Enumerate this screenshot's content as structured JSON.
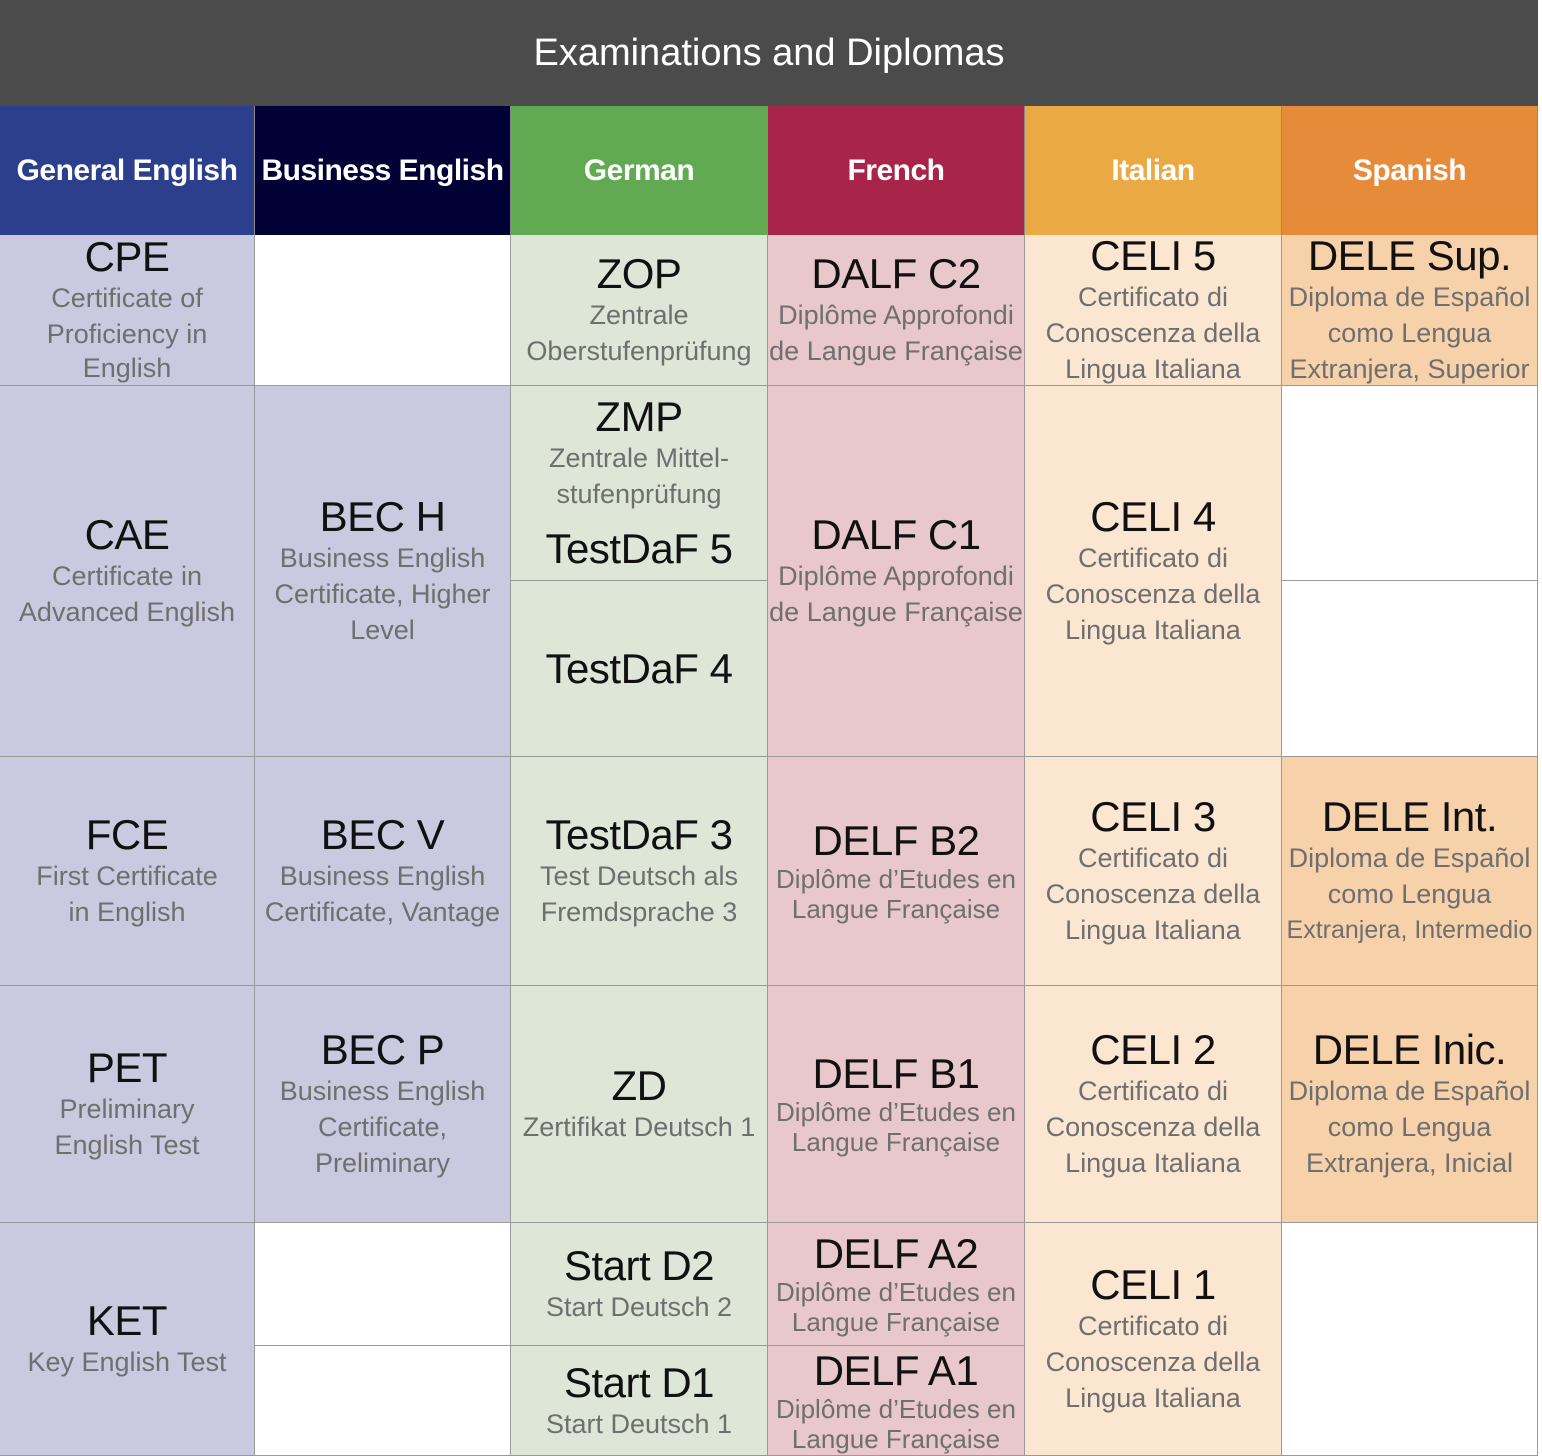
{
  "title": "Examinations and Diplomas",
  "colors": {
    "general_english": "#2b3f8c",
    "business_english": "#010135",
    "german": "#62aa52",
    "french": "#a8244a",
    "italian": "#eba944",
    "spanish": "#e58b3a"
  },
  "headers": {
    "general_english": "General English",
    "business_english": "Business English",
    "german": "German",
    "french": "French",
    "italian": "Italian",
    "spanish": "Spanish"
  },
  "general_english": {
    "cpe": {
      "code": "CPE",
      "desc1": "Certificate of",
      "desc2": "Proficiency in English"
    },
    "cae": {
      "code": "CAE",
      "desc1": "Certificate in",
      "desc2": "Advanced English"
    },
    "fce": {
      "code": "FCE",
      "desc1": "First Certificate",
      "desc2": "in English"
    },
    "pet": {
      "code": "PET",
      "desc1": "Preliminary",
      "desc2": "English Test"
    },
    "ket": {
      "code": "KET",
      "desc1": "Key English Test"
    }
  },
  "business_english": {
    "bech": {
      "code": "BEC H",
      "desc1": "Business English",
      "desc2": "Certificate, Higher",
      "desc3": "Level"
    },
    "becv": {
      "code": "BEC V",
      "desc1": "Business English",
      "desc2": "Certificate, Vantage"
    },
    "becp": {
      "code": "BEC P",
      "desc1": "Business English",
      "desc2": "Certificate,",
      "desc3": "Preliminary"
    }
  },
  "german": {
    "zop": {
      "code": "ZOP",
      "desc1": "Zentrale",
      "desc2": "Oberstufenprüfung"
    },
    "zmp": {
      "code": "ZMP",
      "desc1": "Zentrale Mittel-",
      "desc2": "stufenprüfung"
    },
    "testdaf5": {
      "code": "TestDaF 5"
    },
    "testdaf4": {
      "code": "TestDaF 4"
    },
    "testdaf3": {
      "code": "TestDaF 3",
      "desc1": "Test Deutsch als",
      "desc2": "Fremdsprache 3"
    },
    "zd": {
      "code": "ZD",
      "desc1": "Zertifikat Deutsch 1"
    },
    "startd2": {
      "code": "Start D2",
      "desc1": "Start Deutsch 2"
    },
    "startd1": {
      "code": "Start D1",
      "desc1": "Start Deutsch 1"
    }
  },
  "french": {
    "dalfc2": {
      "code": "DALF C2",
      "desc1": "Diplôme Approfondi",
      "desc2": "de Langue Française"
    },
    "dalfc1": {
      "code": "DALF C1",
      "desc1": "Diplôme Approfondi",
      "desc2": "de Langue Française"
    },
    "delfb2": {
      "code": "DELF B2",
      "desc1": "Diplôme d’Etudes en",
      "desc2": "Langue Française"
    },
    "delfb1": {
      "code": "DELF B1",
      "desc1": "Diplôme d’Etudes en",
      "desc2": "Langue Française"
    },
    "delfa2": {
      "code": "DELF A2",
      "desc1": "Diplôme d’Etudes en",
      "desc2": "Langue Française"
    },
    "delfa1": {
      "code": "DELF A1",
      "desc1": "Diplôme d’Etudes en",
      "desc2": "Langue Française"
    }
  },
  "italian": {
    "celi5": {
      "code": "CELI 5",
      "desc1": "Certificato di",
      "desc2": "Conoscenza della",
      "desc3": "Lingua Italiana"
    },
    "celi4": {
      "code": "CELI 4",
      "desc1": "Certificato di",
      "desc2": "Conoscenza della",
      "desc3": "Lingua Italiana"
    },
    "celi3": {
      "code": "CELI 3",
      "desc1": "Certificato di",
      "desc2": "Conoscenza della",
      "desc3": "Lingua Italiana"
    },
    "celi2": {
      "code": "CELI 2",
      "desc1": "Certificato di",
      "desc2": "Conoscenza della",
      "desc3": "Lingua Italiana"
    },
    "celi1": {
      "code": "CELI 1",
      "desc1": "Certificato di",
      "desc2": "Conoscenza della",
      "desc3": "Lingua Italiana"
    }
  },
  "spanish": {
    "delesup": {
      "code": "DELE Sup.",
      "desc1": "Diploma de Español",
      "desc2": "como Lengua",
      "desc3": "Extranjera, Superior"
    },
    "deleint": {
      "code": "DELE Int.",
      "desc1": "Diploma de Español",
      "desc2": "como Lengua",
      "desc3": "Extranjera, Intermedio"
    },
    "deleinic": {
      "code": "DELE Inic.",
      "desc1": "Diploma de Español",
      "desc2": "como Lengua",
      "desc3": "Extranjera, Inicial"
    }
  }
}
